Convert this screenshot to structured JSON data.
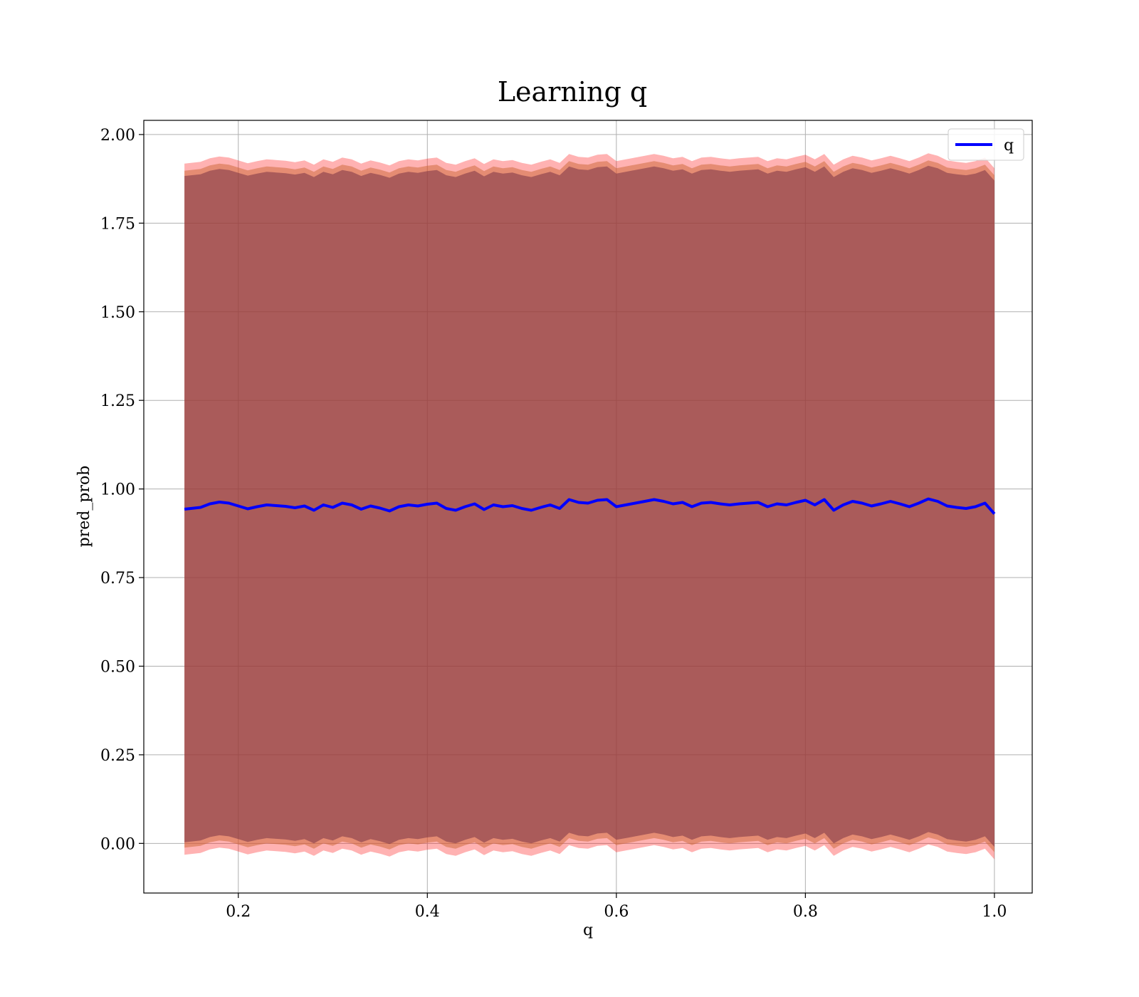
{
  "chart_data": {
    "type": "area",
    "title": "Learning q",
    "xlabel": "q",
    "ylabel": "pred_prob",
    "xlim": [
      0.1,
      1.04
    ],
    "ylim": [
      -0.14,
      2.04
    ],
    "x_ticks": [
      0.2,
      0.4,
      0.6,
      0.8,
      1.0
    ],
    "x_tick_labels": [
      "0.2",
      "0.4",
      "0.6",
      "0.8",
      "1.0"
    ],
    "y_ticks": [
      0.0,
      0.25,
      0.5,
      0.75,
      1.0,
      1.25,
      1.5,
      1.75,
      2.0
    ],
    "y_tick_labels": [
      "0.00",
      "0.25",
      "0.50",
      "0.75",
      "1.00",
      "1.25",
      "1.50",
      "1.75",
      "2.00"
    ],
    "grid": true,
    "legend_position": "top-right",
    "x_range": [
      0.143,
      1.0
    ],
    "series": [
      {
        "name": "q",
        "color": "#0000ff",
        "x": [
          0.143,
          0.16,
          0.17,
          0.18,
          0.19,
          0.2,
          0.21,
          0.22,
          0.23,
          0.24,
          0.25,
          0.26,
          0.27,
          0.28,
          0.29,
          0.3,
          0.31,
          0.32,
          0.33,
          0.34,
          0.35,
          0.36,
          0.37,
          0.38,
          0.39,
          0.4,
          0.41,
          0.42,
          0.43,
          0.44,
          0.45,
          0.46,
          0.47,
          0.48,
          0.49,
          0.5,
          0.51,
          0.52,
          0.53,
          0.54,
          0.55,
          0.56,
          0.57,
          0.58,
          0.59,
          0.6,
          0.61,
          0.62,
          0.63,
          0.64,
          0.65,
          0.66,
          0.67,
          0.68,
          0.69,
          0.7,
          0.71,
          0.72,
          0.73,
          0.74,
          0.75,
          0.76,
          0.77,
          0.78,
          0.79,
          0.8,
          0.81,
          0.82,
          0.83,
          0.84,
          0.85,
          0.86,
          0.87,
          0.88,
          0.89,
          0.9,
          0.91,
          0.92,
          0.93,
          0.94,
          0.95,
          0.96,
          0.97,
          0.98,
          0.99,
          1.0
        ],
        "y": [
          0.943,
          0.948,
          0.958,
          0.963,
          0.96,
          0.952,
          0.944,
          0.95,
          0.955,
          0.953,
          0.951,
          0.947,
          0.952,
          0.94,
          0.955,
          0.948,
          0.96,
          0.955,
          0.943,
          0.952,
          0.946,
          0.938,
          0.95,
          0.955,
          0.952,
          0.957,
          0.96,
          0.945,
          0.94,
          0.95,
          0.958,
          0.942,
          0.955,
          0.95,
          0.953,
          0.945,
          0.94,
          0.948,
          0.955,
          0.945,
          0.97,
          0.962,
          0.96,
          0.968,
          0.97,
          0.95,
          0.955,
          0.96,
          0.965,
          0.97,
          0.965,
          0.958,
          0.962,
          0.95,
          0.96,
          0.962,
          0.958,
          0.955,
          0.958,
          0.96,
          0.962,
          0.95,
          0.958,
          0.955,
          0.962,
          0.968,
          0.955,
          0.97,
          0.94,
          0.955,
          0.965,
          0.96,
          0.952,
          0.958,
          0.965,
          0.958,
          0.95,
          0.96,
          0.972,
          0.965,
          0.952,
          0.948,
          0.945,
          0.95,
          0.96,
          0.93
        ]
      }
    ],
    "bands": [
      {
        "color": "#ff0000",
        "opacity": 0.3,
        "offset_above": 0.975,
        "offset_below": 0.975
      },
      {
        "color": "#cc6633",
        "opacity": 0.5,
        "offset_above": 0.955,
        "offset_below": 0.955
      },
      {
        "color": "#7a3346",
        "opacity": 0.55,
        "offset_above": 0.94,
        "offset_below": 0.94
      }
    ]
  }
}
